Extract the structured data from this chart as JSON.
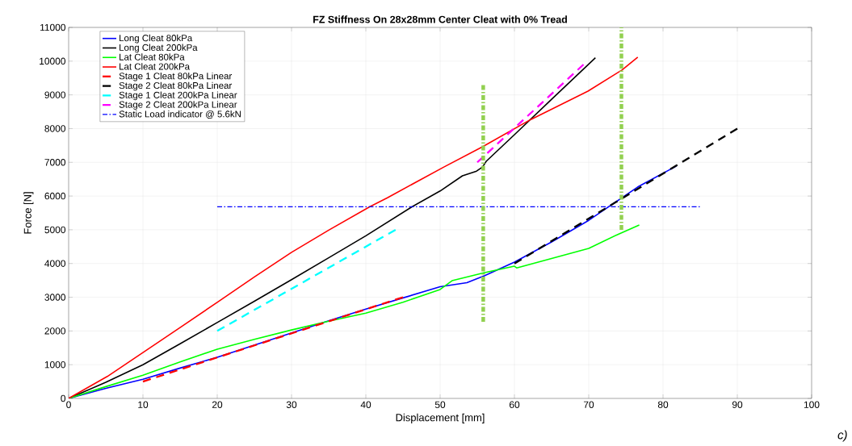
{
  "chart_data": {
    "type": "line",
    "title": "FZ Stiffness On 28x28mm Center Cleat with 0% Tread",
    "xlabel": "Displacement [mm]",
    "ylabel": "Force [N]",
    "xlim": [
      0,
      100
    ],
    "ylim": [
      0,
      11000
    ],
    "xticks": [
      0,
      10,
      20,
      30,
      40,
      50,
      60,
      70,
      80,
      90,
      100
    ],
    "yticks": [
      0,
      1000,
      2000,
      3000,
      4000,
      5000,
      6000,
      7000,
      8000,
      9000,
      10000,
      11000
    ],
    "grid": true,
    "legend": "top left",
    "series": [
      {
        "name": "Long Cleat 80kPa",
        "color": "#0000ff",
        "line_style": "solid",
        "x": [
          0,
          5,
          10,
          15,
          20,
          25,
          30,
          35,
          40,
          45,
          50,
          53.6,
          56,
          60,
          65,
          70,
          72.6,
          76.6,
          81.8
        ],
        "values": [
          0,
          300,
          570,
          900,
          1220,
          1580,
          1940,
          2300,
          2650,
          2980,
          3310,
          3430,
          3640,
          4040,
          4640,
          5280,
          5670,
          6270,
          6890
        ]
      },
      {
        "name": "Long Cleat 200kPa",
        "color": "#000000",
        "line_style": "solid",
        "x": [
          0,
          5,
          10,
          15,
          20,
          25,
          30,
          35,
          40,
          46.2,
          50,
          53,
          54.9,
          55.7,
          56.2,
          60,
          65,
          70.9
        ],
        "values": [
          0,
          480,
          1000,
          1620,
          2250,
          2880,
          3520,
          4170,
          4820,
          5680,
          6150,
          6600,
          6740,
          6860,
          7030,
          7820,
          8870,
          10100
        ]
      },
      {
        "name": "Lat Cleat 80kPa",
        "color": "#00ff00",
        "line_style": "solid",
        "x": [
          0,
          5,
          10,
          15,
          20,
          25,
          30,
          35,
          40,
          45,
          50,
          51.6,
          56,
          60,
          60.3,
          65,
          70,
          74.1,
          76.8
        ],
        "values": [
          0,
          350,
          690,
          1080,
          1460,
          1750,
          2030,
          2290,
          2530,
          2850,
          3230,
          3490,
          3730,
          3920,
          3870,
          4150,
          4450,
          4880,
          5140
        ]
      },
      {
        "name": "Lat Cleat 200kPa",
        "color": "#ff0000",
        "line_style": "solid",
        "x": [
          0,
          5.2,
          10,
          15,
          20,
          25,
          30,
          35,
          40.5,
          42.9,
          50.5,
          55.7,
          62.2,
          69.9,
          74.5,
          76.6
        ],
        "values": [
          0,
          650,
          1360,
          2100,
          2850,
          3600,
          4330,
          4990,
          5680,
          5950,
          6860,
          7460,
          8270,
          9110,
          9740,
          10120
        ]
      },
      {
        "name": "Stage 1 Cleat 80kPa Linear",
        "color": "#ff0000",
        "line_style": "dashed",
        "x": [
          10,
          45
        ],
        "values": [
          500,
          3000
        ]
      },
      {
        "name": "Stage 2 Cleat 80kPa Linear",
        "color": "#000000",
        "line_style": "dashed",
        "x": [
          60,
          90
        ],
        "values": [
          4000,
          8000
        ]
      },
      {
        "name": "Stage 1 Cleat 200kPa Linear",
        "color": "#00ffff",
        "line_style": "dashed",
        "x": [
          20,
          44
        ],
        "values": [
          2000,
          5000
        ]
      },
      {
        "name": "Stage 2 Cleat 200kPa Linear",
        "color": "#ff00ff",
        "line_style": "dashed",
        "x": [
          55,
          69.3
        ],
        "values": [
          7000,
          9900
        ]
      },
      {
        "name": "Static Load indicator @ 5.6kN",
        "color": "#0000ff",
        "line_style": "dashdot",
        "x": [
          20,
          85
        ],
        "values": [
          5680,
          5680
        ]
      },
      {
        "color": "#92d050",
        "line_style": "dashdot",
        "x": [
          55.8,
          55.8
        ],
        "values": [
          2270,
          9320
        ]
      },
      {
        "color": "#92d050",
        "line_style": "dashdot",
        "x": [
          74.4,
          74.4
        ],
        "values": [
          5000,
          11000
        ]
      }
    ],
    "annotations": [
      "c)"
    ]
  }
}
